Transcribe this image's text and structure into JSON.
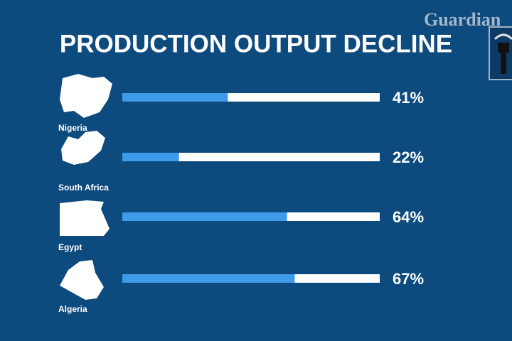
{
  "chart_data": {
    "type": "bar",
    "title": "PRODUCTION OUTPUT DECLINE",
    "watermark": "Guardian",
    "categories": [
      "Nigeria",
      "South Africa",
      "Egypt",
      "Algeria"
    ],
    "values": [
      41,
      22,
      64,
      67
    ],
    "value_labels": [
      "41%",
      "22%",
      "64%",
      "67%"
    ],
    "color": "#3d9be9",
    "track_color": "#ffffff",
    "xlim": [
      0,
      100
    ]
  }
}
